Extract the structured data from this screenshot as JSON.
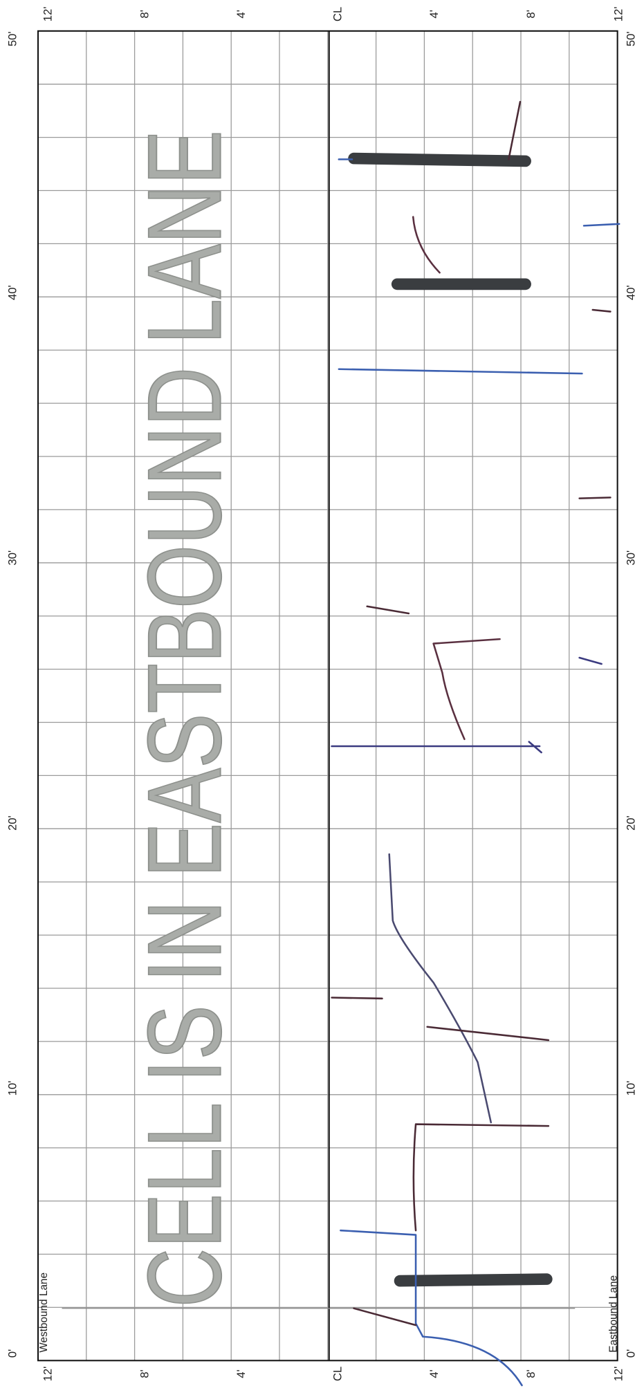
{
  "distance_labels_left": [
    "0'",
    "10'",
    "20'",
    "30'",
    "40'",
    "50'"
  ],
  "distance_labels_right": [
    "0'",
    "10'",
    "20'",
    "30'",
    "40'",
    "50'"
  ],
  "offset_labels_top": [
    "12'",
    "8'",
    "4'",
    "CL",
    "4'",
    "8'",
    "12'"
  ],
  "offset_labels_bottom": [
    "12'",
    "8'",
    "4'",
    "CL",
    "4'",
    "8'",
    "12'"
  ],
  "lane_labels": {
    "westbound": "Westbound Lane",
    "eastbound": "Eastbound Lane"
  },
  "stamp": "CELL IS IN EASTBOUND LANE"
}
